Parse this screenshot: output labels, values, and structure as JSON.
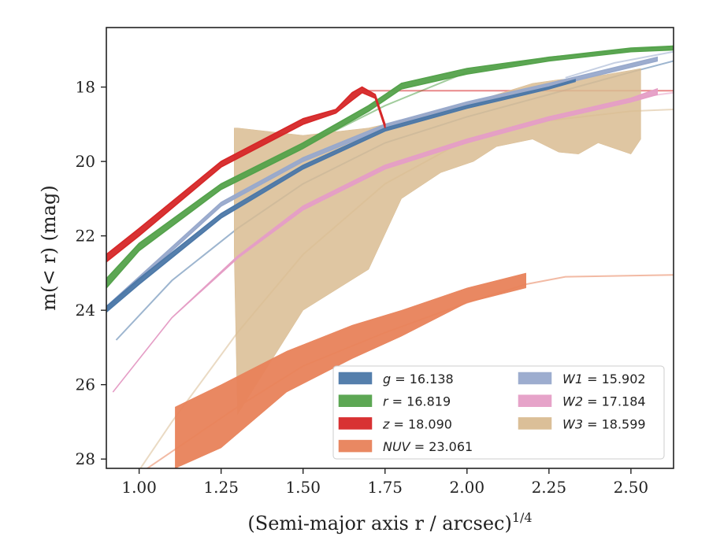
{
  "chart_data": {
    "type": "line",
    "xlabel": "(Semi-major axis r / arcsec)",
    "xlabel_sup": "1/4",
    "ylabel": "m(< r) (mag)",
    "xlim": [
      0.9,
      2.63
    ],
    "ylim": [
      28.25,
      16.4
    ],
    "y_inverted": true,
    "x_ticks": [
      "1.00",
      "1.25",
      "1.50",
      "1.75",
      "2.00",
      "2.25",
      "2.50"
    ],
    "x_tick_values": [
      1.0,
      1.25,
      1.5,
      1.75,
      2.0,
      2.25,
      2.5
    ],
    "y_ticks": [
      "18",
      "20",
      "22",
      "24",
      "26",
      "28"
    ],
    "y_tick_values": [
      18,
      20,
      22,
      24,
      26,
      28
    ],
    "legend_position": "lower-right",
    "legend_columns": 2,
    "series": [
      {
        "name": "g = 16.138",
        "var": "g",
        "value": "16.138",
        "color": "#4c78a8",
        "band_x": [
          0.9,
          1.0,
          1.25,
          1.5,
          1.75,
          2.0,
          2.25,
          2.33
        ],
        "band_lo": [
          23.9,
          23.15,
          21.4,
          20.1,
          19.1,
          18.5,
          18.0,
          17.8
        ],
        "band_hi": [
          24.05,
          23.3,
          21.52,
          20.2,
          19.18,
          18.57,
          18.05,
          17.85
        ],
        "ext_x": [
          0.93,
          1.1,
          1.3,
          1.5,
          1.75,
          2.0,
          2.25,
          2.5,
          2.63
        ],
        "ext_y": [
          24.8,
          23.2,
          21.8,
          20.6,
          19.5,
          18.8,
          18.2,
          17.6,
          17.3
        ]
      },
      {
        "name": "r = 16.819",
        "var": "r",
        "value": "16.819",
        "color": "#54a24b",
        "band_x": [
          0.9,
          1.0,
          1.25,
          1.5,
          1.7,
          1.75,
          1.8,
          2.0,
          2.25,
          2.5,
          2.63
        ],
        "band_lo": [
          23.15,
          22.2,
          20.6,
          19.5,
          18.5,
          18.2,
          17.9,
          17.5,
          17.2,
          16.95,
          16.9
        ],
        "band_hi": [
          23.4,
          22.4,
          20.75,
          19.65,
          18.65,
          18.35,
          18.05,
          17.65,
          17.3,
          17.05,
          17.0
        ],
        "ext_x": [
          1.5,
          1.75,
          2.0,
          2.25,
          2.5,
          2.63
        ],
        "ext_y": [
          19.6,
          18.5,
          17.6,
          17.2,
          17.0,
          16.9
        ]
      },
      {
        "name": "z = 18.090",
        "var": "z",
        "value": "18.090",
        "color": "#d62728",
        "band_x": [
          0.9,
          1.0,
          1.25,
          1.5,
          1.6,
          1.65,
          1.68,
          1.72,
          1.75
        ],
        "band_lo": [
          22.5,
          21.8,
          20.0,
          18.85,
          18.6,
          18.15,
          18.0,
          18.2,
          19.0
        ],
        "band_hi": [
          22.7,
          22.0,
          20.15,
          19.0,
          18.7,
          18.35,
          18.15,
          18.3,
          19.1
        ],
        "ext_x": [
          1.68,
          2.0,
          2.3,
          2.63
        ],
        "ext_y": [
          18.1,
          18.1,
          18.1,
          18.1
        ]
      },
      {
        "name": "NUV = 23.061",
        "var": "NUV",
        "value": "23.061",
        "color": "#e8825a",
        "band_x": [
          1.11,
          1.25,
          1.45,
          1.65,
          1.8,
          2.0,
          2.18
        ],
        "band_lo": [
          28.25,
          27.7,
          26.2,
          25.3,
          24.7,
          23.8,
          23.4
        ],
        "band_hi": [
          26.6,
          26.0,
          25.1,
          24.4,
          24.0,
          23.4,
          23.0
        ],
        "ext_x": [
          0.95,
          1.1,
          1.3,
          1.5,
          1.75,
          2.0,
          2.18,
          2.3,
          2.63
        ],
        "ext_y": [
          28.7,
          27.8,
          26.6,
          25.5,
          24.6,
          23.8,
          23.3,
          23.1,
          23.05
        ]
      },
      {
        "name": "W1 = 15.902",
        "var": "W1",
        "value": "15.902",
        "color": "#98a9cc",
        "band_x": [
          0.9,
          1.25,
          1.5,
          1.75,
          2.0,
          2.25,
          2.58
        ],
        "band_lo": [
          23.9,
          21.1,
          19.9,
          19.0,
          18.4,
          17.9,
          17.2
        ],
        "band_hi": [
          24.0,
          21.2,
          20.0,
          19.1,
          18.5,
          18.0,
          17.3
        ],
        "ext_x": [
          2.3,
          2.45,
          2.63
        ],
        "ext_y": [
          17.75,
          17.35,
          17.05
        ]
      },
      {
        "name": "W2 = 17.184",
        "var": "W2",
        "value": "17.184",
        "color": "#e59ec6",
        "band_x": [
          0.92,
          1.1,
          1.3,
          1.5,
          1.75,
          2.0,
          2.25,
          2.5,
          2.58
        ],
        "band_lo": [
          26.2,
          24.2,
          22.6,
          21.3,
          20.2,
          19.5,
          18.9,
          18.4,
          18.2
        ],
        "band_hi": [
          26.2,
          24.2,
          22.55,
          21.2,
          20.1,
          19.4,
          18.8,
          18.3,
          18.05
        ],
        "ext_x": [
          2.5,
          2.63
        ],
        "ext_y": [
          18.3,
          18.15
        ]
      },
      {
        "name": "W3 = 18.599",
        "var": "W3",
        "value": "18.599",
        "color": "#d9bc92",
        "band_x": [
          1.29,
          1.3,
          1.5,
          1.7,
          1.8,
          1.92,
          2.02,
          2.09,
          2.2,
          2.28,
          2.34,
          2.4,
          2.5,
          2.53
        ],
        "band_lo": [
          22.5,
          26.8,
          24.0,
          22.9,
          21.0,
          20.3,
          20.0,
          19.6,
          19.4,
          19.75,
          19.8,
          19.5,
          19.8,
          19.4
        ],
        "band_hi": [
          19.1,
          19.1,
          19.3,
          19.1,
          18.9,
          18.6,
          18.4,
          18.2,
          17.9,
          17.8,
          17.75,
          17.7,
          17.55,
          17.5
        ],
        "ext_x": [
          1.0,
          1.1,
          1.3,
          1.5,
          1.75,
          2.0,
          2.25,
          2.5,
          2.63
        ],
        "ext_y": [
          28.3,
          27.0,
          24.6,
          22.5,
          20.6,
          19.4,
          18.9,
          18.65,
          18.6
        ]
      }
    ]
  }
}
